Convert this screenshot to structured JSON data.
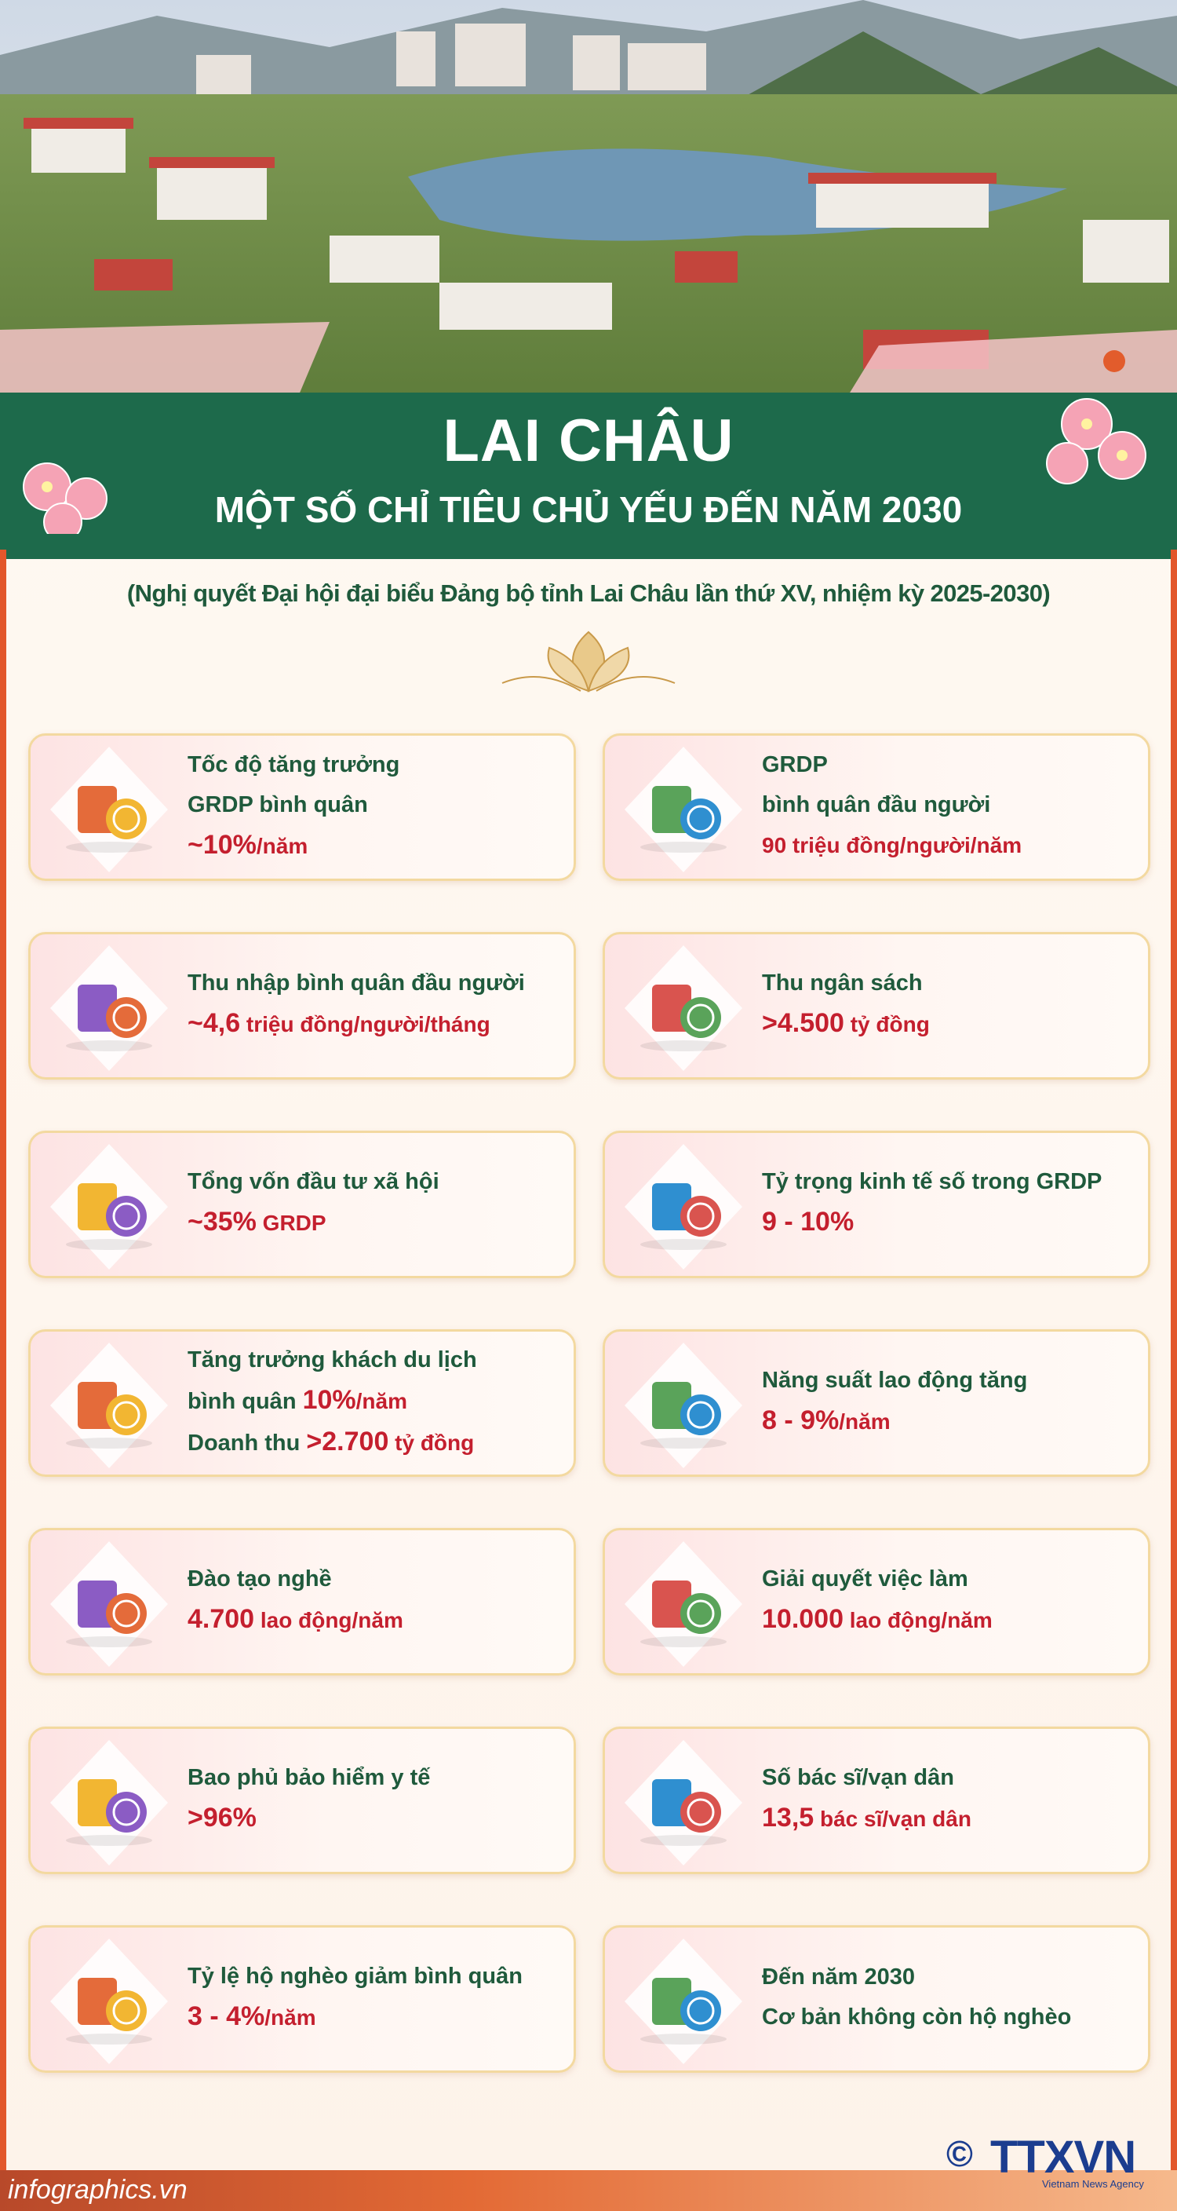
{
  "header": {
    "title": "LAI CHÂU",
    "subtitle": "MỘT SỐ CHỈ TIÊU CHỦ YẾU ĐẾN NĂM 2030",
    "note": "(Nghị quyết Đại hội đại biểu Đảng bộ tỉnh Lai Châu lần thứ XV, nhiệm kỳ 2025-2030)"
  },
  "cards": [
    {
      "lines": [
        [
          {
            "text": "Tốc độ tăng trưởng",
            "style": "label"
          }
        ],
        [
          {
            "text": "GRDP bình quân",
            "style": "label"
          }
        ],
        [
          {
            "text": "~10%",
            "style": "value-strong"
          },
          {
            "text": "/năm",
            "style": "value"
          }
        ]
      ]
    },
    {
      "lines": [
        [
          {
            "text": "GRDP",
            "style": "label"
          }
        ],
        [
          {
            "text": "bình quân đầu người",
            "style": "label"
          }
        ],
        [
          {
            "text": "90 triệu đồng/người/năm",
            "style": "value"
          }
        ]
      ]
    },
    {
      "lines": [
        [
          {
            "text": "Thu nhập bình quân đầu người",
            "style": "label"
          }
        ],
        [
          {
            "text": "~4,6",
            "style": "value-strong"
          },
          {
            "text": " triệu đồng/người/tháng",
            "style": "value"
          }
        ]
      ]
    },
    {
      "lines": [
        [
          {
            "text": "Thu ngân sách",
            "style": "label"
          }
        ],
        [
          {
            "text": ">4.500",
            "style": "value-strong"
          },
          {
            "text": " tỷ đồng",
            "style": "value"
          }
        ]
      ]
    },
    {
      "lines": [
        [
          {
            "text": "Tổng vốn đầu tư xã hội",
            "style": "label"
          }
        ],
        [
          {
            "text": "~35%",
            "style": "value-strong"
          },
          {
            "text": " GRDP",
            "style": "value"
          }
        ]
      ]
    },
    {
      "lines": [
        [
          {
            "text": "Tỷ trọng kinh tế số trong GRDP",
            "style": "label"
          }
        ],
        [
          {
            "text": "9 - 10%",
            "style": "value-strong"
          }
        ]
      ]
    },
    {
      "lines": [
        [
          {
            "text": "Tăng trưởng khách du lịch",
            "style": "label"
          }
        ],
        [
          {
            "text": "bình quân ",
            "style": "label"
          },
          {
            "text": "10%",
            "style": "value-strong"
          },
          {
            "text": "/năm",
            "style": "value"
          }
        ],
        [
          {
            "text": "Doanh thu ",
            "style": "label"
          },
          {
            "text": ">2.700",
            "style": "value-strong"
          },
          {
            "text": " tỷ đồng",
            "style": "value"
          }
        ]
      ]
    },
    {
      "lines": [
        [
          {
            "text": "Năng suất lao động tăng",
            "style": "label"
          }
        ],
        [
          {
            "text": "8 - 9%",
            "style": "value-strong"
          },
          {
            "text": "/năm",
            "style": "value"
          }
        ]
      ]
    },
    {
      "lines": [
        [
          {
            "text": "Đào tạo nghề",
            "style": "label"
          }
        ],
        [
          {
            "text": "4.700",
            "style": "value-strong"
          },
          {
            "text": " lao động/năm",
            "style": "value"
          }
        ]
      ]
    },
    {
      "lines": [
        [
          {
            "text": "Giải quyết việc làm",
            "style": "label"
          }
        ],
        [
          {
            "text": "10.000",
            "style": "value-strong"
          },
          {
            "text": " lao động/năm",
            "style": "value"
          }
        ]
      ]
    },
    {
      "lines": [
        [
          {
            "text": "Bao phủ bảo hiểm y tế",
            "style": "label"
          }
        ],
        [
          {
            "text": ">96%",
            "style": "value-strong"
          }
        ]
      ]
    },
    {
      "lines": [
        [
          {
            "text": "Số bác sĩ/vạn dân",
            "style": "label"
          }
        ],
        [
          {
            "text": "13,5",
            "style": "value-strong"
          },
          {
            "text": " bác sĩ/vạn dân",
            "style": "value"
          }
        ]
      ]
    },
    {
      "lines": [
        [
          {
            "text": "Tỷ lệ hộ nghèo giảm bình quân",
            "style": "label"
          }
        ],
        [
          {
            "text": "3 - 4%",
            "style": "value-strong"
          },
          {
            "text": "/năm",
            "style": "value"
          }
        ]
      ]
    },
    {
      "lines": [
        [
          {
            "text": "Đến năm 2030",
            "style": "label"
          }
        ],
        [
          {
            "text": "Cơ bản không còn hộ nghèo",
            "style": "label"
          }
        ]
      ]
    }
  ],
  "footer": {
    "site": "infographics.vn",
    "copyright": "©",
    "logo": "TTXVN",
    "agency": "Vietnam News Agency"
  }
}
